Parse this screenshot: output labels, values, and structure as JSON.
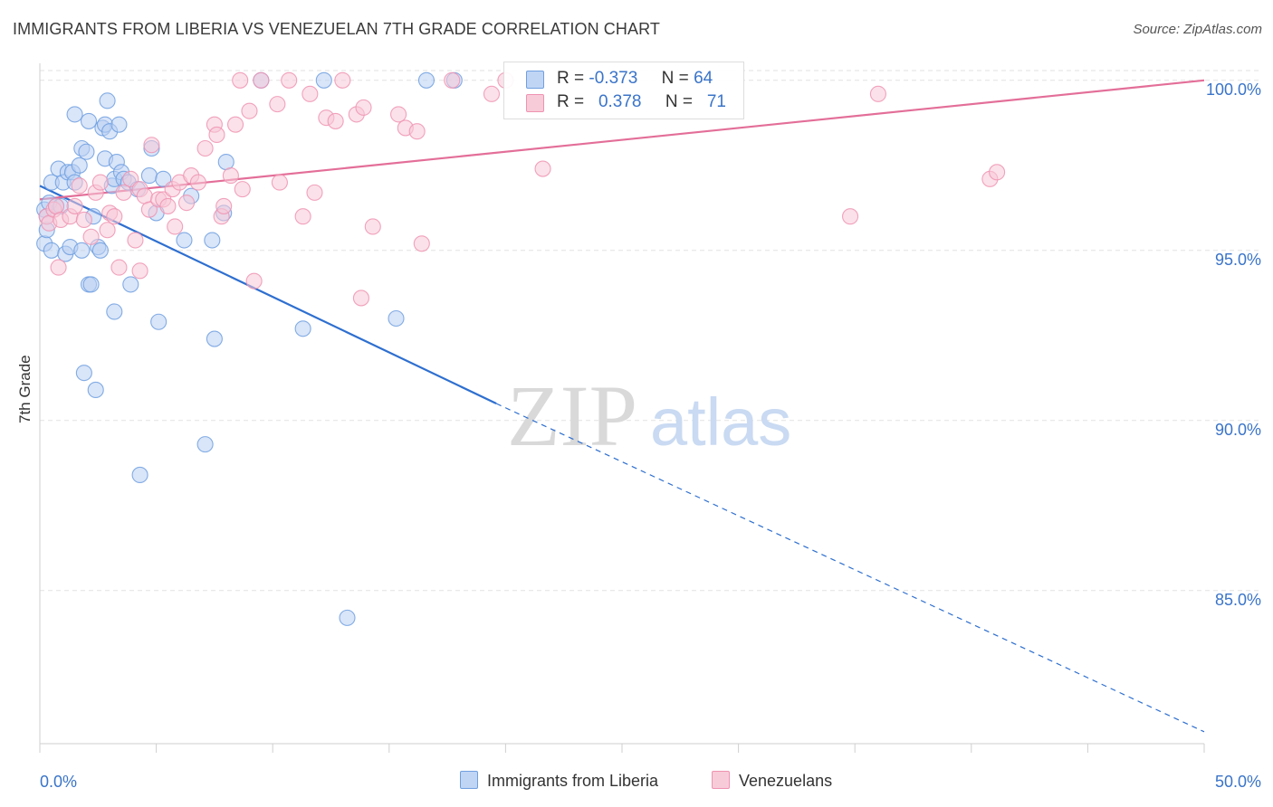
{
  "header": {
    "title": "IMMIGRANTS FROM LIBERIA VS VENEZUELAN 7TH GRADE CORRELATION CHART",
    "source": "Source: ZipAtlas.com"
  },
  "watermark": {
    "zip": "ZIP",
    "atlas": "atlas"
  },
  "stats_legend": {
    "rows": [
      {
        "r_label": "R =",
        "r_value": "-0.373",
        "n_label": "N =",
        "n_value": "64",
        "color": "#a9c4ee"
      },
      {
        "r_label": "R =",
        "r_value": "0.378",
        "n_label": "N =",
        "n_value": "71",
        "color": "#f5b6ca"
      }
    ]
  },
  "bottom_legend": {
    "items": [
      {
        "label": "Immigrants from Liberia",
        "color": "#a9c4ee"
      },
      {
        "label": "Venezuelans",
        "color": "#f5b6ca"
      }
    ]
  },
  "chart_data": {
    "type": "scatter",
    "title": "IMMIGRANTS FROM LIBERIA VS VENEZUELAN 7TH GRADE CORRELATION CHART",
    "xlabel": "",
    "ylabel": "7th Grade",
    "xlim": [
      0,
      50
    ],
    "ylim": [
      80.5,
      100.5
    ],
    "x_tick_labels": [
      "0.0%",
      "50.0%"
    ],
    "y_ticks": [
      85,
      90,
      95,
      100
    ],
    "y_tick_labels": [
      "85.0%",
      "90.0%",
      "95.0%",
      "100.0%"
    ],
    "grid": true,
    "legend_position": "top-center",
    "series": [
      {
        "name": "Immigrants from Liberia",
        "color": "#6f9fe0",
        "fill": "#b9d0f2",
        "line_color": "#2e6fd0",
        "trend": {
          "x0": 0,
          "y0": 96.9,
          "x1": 19.6,
          "y1": 90.5,
          "dash_to_x": 50,
          "dash_to_y": 80.85
        },
        "points": [
          [
            0.2,
            96.2
          ],
          [
            0.2,
            95.2
          ],
          [
            0.3,
            95.6
          ],
          [
            0.3,
            96.0
          ],
          [
            0.4,
            96.4
          ],
          [
            0.5,
            95.0
          ],
          [
            0.5,
            97.0
          ],
          [
            0.7,
            96.3
          ],
          [
            0.8,
            97.4
          ],
          [
            0.9,
            96.3
          ],
          [
            1.0,
            97.0
          ],
          [
            1.1,
            94.9
          ],
          [
            1.2,
            97.3
          ],
          [
            1.3,
            95.1
          ],
          [
            1.4,
            97.3
          ],
          [
            1.5,
            97.0
          ],
          [
            1.5,
            99.0
          ],
          [
            1.7,
            97.5
          ],
          [
            1.8,
            95.0
          ],
          [
            1.8,
            98.0
          ],
          [
            1.9,
            91.4
          ],
          [
            2.0,
            97.9
          ],
          [
            2.1,
            98.8
          ],
          [
            2.1,
            94.0
          ],
          [
            2.2,
            94.0
          ],
          [
            2.3,
            96.0
          ],
          [
            2.4,
            90.9
          ],
          [
            2.5,
            95.1
          ],
          [
            2.6,
            95.0
          ],
          [
            2.7,
            98.6
          ],
          [
            2.8,
            98.7
          ],
          [
            2.8,
            97.7
          ],
          [
            2.9,
            99.4
          ],
          [
            3.0,
            98.5
          ],
          [
            3.1,
            96.9
          ],
          [
            3.2,
            93.2
          ],
          [
            3.2,
            97.1
          ],
          [
            3.3,
            97.6
          ],
          [
            3.4,
            98.7
          ],
          [
            3.5,
            97.3
          ],
          [
            3.6,
            97.1
          ],
          [
            3.8,
            97.0
          ],
          [
            3.9,
            94.0
          ],
          [
            4.2,
            96.8
          ],
          [
            4.3,
            88.4
          ],
          [
            4.7,
            97.2
          ],
          [
            4.8,
            98.0
          ],
          [
            5.0,
            96.1
          ],
          [
            5.1,
            92.9
          ],
          [
            5.3,
            97.1
          ],
          [
            6.2,
            95.3
          ],
          [
            6.5,
            96.6
          ],
          [
            7.1,
            89.3
          ],
          [
            7.4,
            95.3
          ],
          [
            7.5,
            92.4
          ],
          [
            7.9,
            96.1
          ],
          [
            8.0,
            97.6
          ],
          [
            9.5,
            100.0
          ],
          [
            11.3,
            92.7
          ],
          [
            12.2,
            100.0
          ],
          [
            13.2,
            84.2
          ],
          [
            15.3,
            93.0
          ],
          [
            16.6,
            100.0
          ],
          [
            17.8,
            100.0
          ]
        ]
      },
      {
        "name": "Venezuelans",
        "color": "#ef93b1",
        "fill": "#f8c8d7",
        "line_color": "#e36e98",
        "trend": {
          "x0": 0,
          "y0": 96.5,
          "x1": 50,
          "y1": 100.0
        },
        "points": [
          [
            0.3,
            96.0
          ],
          [
            0.4,
            95.8
          ],
          [
            0.6,
            96.2
          ],
          [
            0.7,
            96.3
          ],
          [
            0.8,
            94.5
          ],
          [
            0.9,
            95.9
          ],
          [
            1.3,
            96.0
          ],
          [
            1.5,
            96.3
          ],
          [
            1.7,
            96.9
          ],
          [
            1.9,
            95.9
          ],
          [
            2.2,
            95.4
          ],
          [
            2.4,
            96.7
          ],
          [
            2.6,
            97.0
          ],
          [
            2.9,
            95.6
          ],
          [
            3.0,
            96.1
          ],
          [
            3.2,
            96.0
          ],
          [
            3.4,
            94.5
          ],
          [
            3.6,
            96.7
          ],
          [
            3.9,
            97.1
          ],
          [
            4.1,
            95.3
          ],
          [
            4.3,
            94.4
          ],
          [
            4.3,
            96.8
          ],
          [
            4.5,
            96.6
          ],
          [
            4.7,
            96.2
          ],
          [
            4.8,
            98.1
          ],
          [
            5.1,
            96.5
          ],
          [
            5.3,
            96.5
          ],
          [
            5.5,
            96.3
          ],
          [
            5.7,
            96.8
          ],
          [
            5.8,
            95.7
          ],
          [
            6.0,
            97.0
          ],
          [
            6.3,
            96.4
          ],
          [
            6.5,
            97.2
          ],
          [
            6.8,
            97.0
          ],
          [
            7.1,
            98.0
          ],
          [
            7.5,
            98.7
          ],
          [
            7.6,
            98.4
          ],
          [
            7.8,
            96.0
          ],
          [
            7.9,
            96.3
          ],
          [
            8.2,
            97.2
          ],
          [
            8.4,
            98.7
          ],
          [
            8.6,
            100.0
          ],
          [
            8.7,
            96.8
          ],
          [
            9.0,
            99.1
          ],
          [
            9.2,
            94.1
          ],
          [
            9.5,
            100.0
          ],
          [
            10.2,
            99.3
          ],
          [
            10.3,
            97.0
          ],
          [
            10.7,
            100.0
          ],
          [
            11.3,
            96.0
          ],
          [
            11.6,
            99.6
          ],
          [
            11.8,
            96.7
          ],
          [
            12.3,
            98.9
          ],
          [
            12.7,
            98.8
          ],
          [
            13.0,
            100.0
          ],
          [
            13.6,
            99.0
          ],
          [
            13.8,
            93.6
          ],
          [
            13.9,
            99.2
          ],
          [
            14.3,
            95.7
          ],
          [
            15.4,
            99.0
          ],
          [
            15.7,
            98.6
          ],
          [
            16.2,
            98.5
          ],
          [
            16.4,
            95.2
          ],
          [
            17.7,
            100.0
          ],
          [
            19.4,
            99.6
          ],
          [
            20.0,
            100.0
          ],
          [
            21.6,
            97.4
          ],
          [
            34.8,
            96.0
          ],
          [
            36.0,
            99.6
          ],
          [
            40.8,
            97.1
          ],
          [
            41.1,
            97.3
          ]
        ]
      }
    ]
  }
}
